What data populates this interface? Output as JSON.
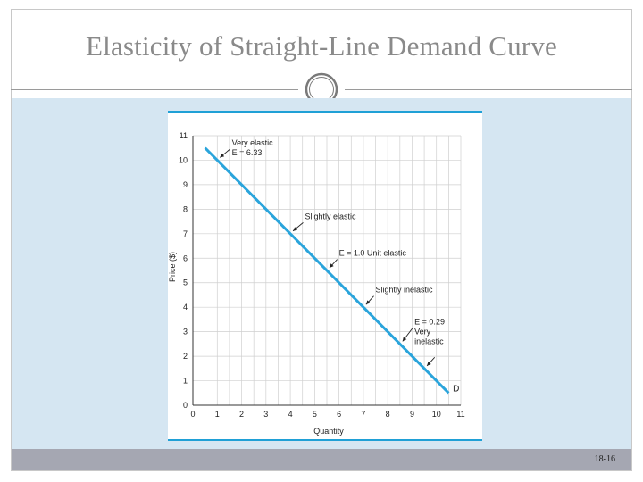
{
  "slide": {
    "title": "Elasticity of Straight-Line Demand Curve",
    "page_number": "18-16"
  },
  "colors": {
    "demand_line": "#2aa4db",
    "content_bg": "#d5e6f2",
    "footer_bg": "#a5a7b2",
    "accent_line": "#1fa0d6"
  },
  "chart_data": {
    "type": "line",
    "title": "",
    "xlabel": "Quantity",
    "ylabel": "Price ($)",
    "xlim": [
      0,
      11
    ],
    "ylim": [
      0,
      11
    ],
    "x_ticks": [
      "0",
      "1",
      "2",
      "3",
      "4",
      "5",
      "6",
      "7",
      "8",
      "9",
      "10",
      "11"
    ],
    "y_ticks": [
      "0",
      "1",
      "2",
      "3",
      "4",
      "5",
      "6",
      "7",
      "8",
      "9",
      "10",
      "11"
    ],
    "grid": true,
    "series": [
      {
        "name": "D",
        "x": [
          0.5,
          10.5
        ],
        "y": [
          10.5,
          0.5
        ]
      }
    ],
    "annotations": [
      {
        "lines": [
          "Very elastic",
          "E = 6.33"
        ],
        "point": [
          1.0,
          10.0
        ],
        "text_at": [
          1.6,
          10.6
        ]
      },
      {
        "lines": [
          "Slightly elastic"
        ],
        "point": [
          4.0,
          7.0
        ],
        "text_at": [
          4.6,
          7.6
        ]
      },
      {
        "lines": [
          "E = 1.0  Unit elastic"
        ],
        "point": [
          5.5,
          5.5
        ],
        "text_at": [
          6.0,
          6.1
        ]
      },
      {
        "lines": [
          "Slightly inelastic"
        ],
        "point": [
          7.0,
          4.0
        ],
        "text_at": [
          7.5,
          4.6
        ]
      },
      {
        "lines": [
          "E = 0.29",
          "Very",
          "inelastic"
        ],
        "point": [
          8.5,
          2.5
        ],
        "text_at": [
          9.1,
          3.3
        ]
      },
      {
        "lines": [],
        "point": [
          9.5,
          1.5
        ],
        "text_at": [
          10.0,
          2.1
        ]
      }
    ],
    "end_label": {
      "text": "D",
      "at": [
        10.6,
        0.5
      ]
    }
  }
}
